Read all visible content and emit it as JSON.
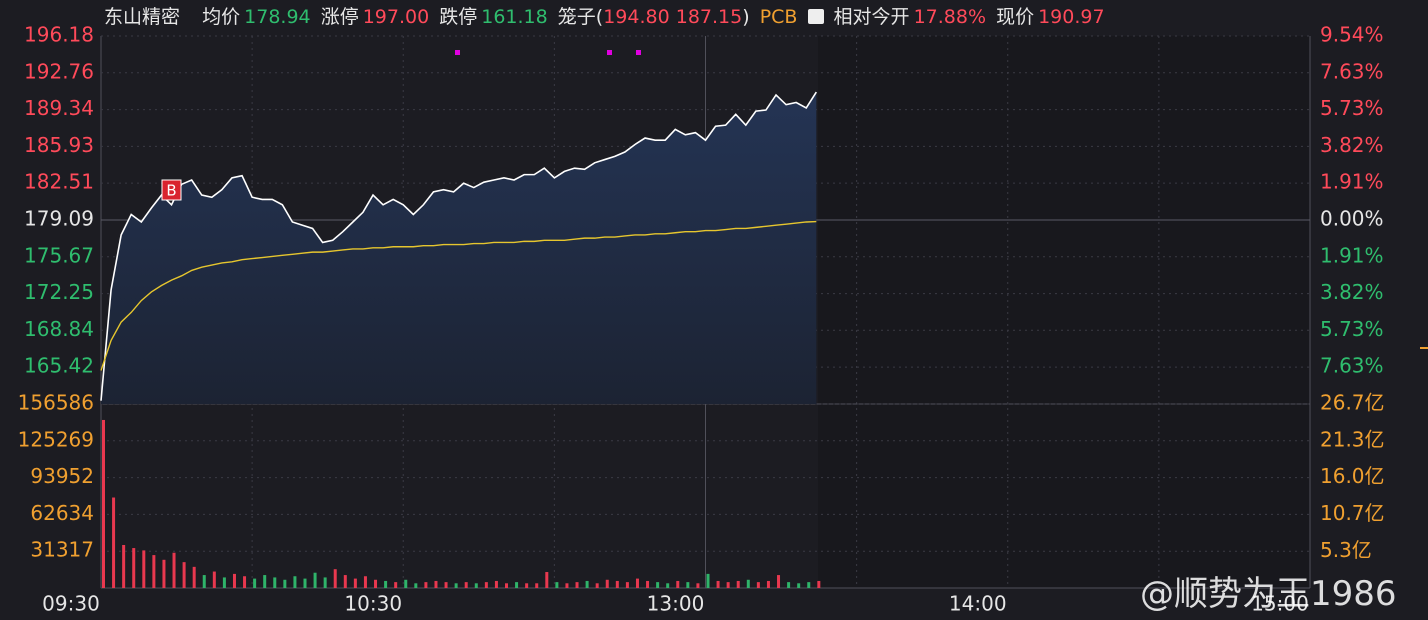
{
  "chart_data": [
    {
      "type": "line",
      "header": {
        "name": "东山精密",
        "avg_label": "均价",
        "avg_value": "178.94",
        "up_label": "涨停",
        "up_value": "197.00",
        "down_label": "跌停",
        "down_value": "161.18",
        "cage_label": "笼子(",
        "cage_values": "194.80 187.15",
        "cage_end": ")",
        "sector": "PCB",
        "open_label": "相对今开",
        "open_value": "17.88%",
        "price_label": "现价",
        "price_value": "190.97"
      },
      "annotations": [
        "B"
      ],
      "x": [
        0,
        2,
        4,
        6,
        8,
        10,
        12,
        14,
        16,
        18,
        20,
        22,
        24,
        26,
        28,
        30,
        32,
        34,
        36,
        38,
        40,
        42,
        44,
        46,
        48,
        50,
        52,
        54,
        56,
        58,
        60,
        62,
        64,
        66,
        68,
        70,
        72,
        74,
        76,
        78,
        80,
        82,
        84,
        86,
        88,
        90,
        92,
        94,
        96,
        98,
        100,
        102,
        104,
        106,
        108,
        110,
        112,
        114,
        116,
        118,
        120,
        122,
        124,
        126,
        128,
        130,
        132,
        134,
        136,
        138,
        140,
        142
      ],
      "xlim": [
        0,
        240
      ],
      "ylim": [
        161.99,
        196.18
      ],
      "yticks": [
        {
          "value": 196.18,
          "label": "196.18"
        },
        {
          "value": 192.76,
          "label": "192.76"
        },
        {
          "value": 189.34,
          "label": "189.34"
        },
        {
          "value": 185.93,
          "label": "185.93"
        },
        {
          "value": 182.51,
          "label": "182.51"
        },
        {
          "value": 179.09,
          "label": "179.09"
        },
        {
          "value": 175.67,
          "label": "175.67"
        },
        {
          "value": 172.25,
          "label": "172.25"
        },
        {
          "value": 168.84,
          "label": "168.84"
        },
        {
          "value": 165.42,
          "label": "165.42"
        }
      ],
      "y2lim": [
        -9.54,
        9.54
      ],
      "y2ticks": [
        {
          "value": 9.54,
          "label": "9.54%"
        },
        {
          "value": 7.63,
          "label": "7.63%"
        },
        {
          "value": 5.73,
          "label": "5.73%"
        },
        {
          "value": 3.82,
          "label": "3.82%"
        },
        {
          "value": 1.91,
          "label": "1.91%"
        },
        {
          "value": 0,
          "label": "0.00%"
        },
        {
          "value": -1.91,
          "label": "1.91%"
        },
        {
          "value": -3.82,
          "label": "3.82%"
        },
        {
          "value": -5.73,
          "label": "5.73%"
        },
        {
          "value": -7.63,
          "label": "7.63%"
        }
      ],
      "series": [
        {
          "color": "#ffffff",
          "values": [
            162.3,
            172.6,
            177.7,
            179.6,
            178.9,
            180.2,
            181.4,
            180.5,
            182.4,
            182.8,
            181.4,
            181.2,
            181.9,
            183.0,
            183.2,
            181.2,
            181.0,
            181.0,
            180.5,
            178.9,
            178.6,
            178.3,
            177.0,
            177.2,
            178.0,
            178.9,
            179.8,
            181.4,
            180.5,
            181.0,
            180.5,
            179.6,
            180.5,
            181.7,
            181.9,
            181.7,
            182.5,
            182.1,
            182.6,
            182.8,
            183.0,
            182.8,
            183.3,
            183.3,
            183.9,
            183.0,
            183.6,
            183.9,
            183.8,
            184.4,
            184.7,
            185.0,
            185.4,
            186.1,
            186.7,
            186.5,
            186.5,
            187.5,
            187.0,
            187.2,
            186.5,
            187.8,
            187.9,
            188.9,
            187.9,
            189.2,
            189.3,
            190.7,
            189.8,
            190.0,
            189.5,
            190.97
          ]
        },
        {
          "color": "#e6c62e",
          "values": [
            165.1,
            167.9,
            169.6,
            170.5,
            171.6,
            172.4,
            173.0,
            173.5,
            173.9,
            174.4,
            174.7,
            174.9,
            175.1,
            175.2,
            175.4,
            175.5,
            175.6,
            175.7,
            175.8,
            175.9,
            176.0,
            176.1,
            176.1,
            176.2,
            176.3,
            176.4,
            176.4,
            176.5,
            176.5,
            176.6,
            176.6,
            176.6,
            176.7,
            176.7,
            176.8,
            176.8,
            176.8,
            176.9,
            176.9,
            177.0,
            177.0,
            177.0,
            177.1,
            177.1,
            177.2,
            177.2,
            177.2,
            177.3,
            177.4,
            177.4,
            177.5,
            177.5,
            177.6,
            177.7,
            177.7,
            177.8,
            177.8,
            177.9,
            178.0,
            178.0,
            178.1,
            178.1,
            178.2,
            178.3,
            178.3,
            178.4,
            178.5,
            178.6,
            178.7,
            178.8,
            178.9,
            178.94
          ]
        }
      ]
    },
    {
      "type": "bar",
      "x": [
        0,
        2,
        4,
        6,
        8,
        10,
        12,
        14,
        16,
        18,
        20,
        22,
        24,
        26,
        28,
        30,
        32,
        34,
        36,
        38,
        40,
        42,
        44,
        46,
        48,
        50,
        52,
        54,
        56,
        58,
        60,
        62,
        64,
        66,
        68,
        70,
        72,
        74,
        76,
        78,
        80,
        82,
        84,
        86,
        88,
        90,
        92,
        94,
        96,
        98,
        100,
        102,
        104,
        106,
        108,
        110,
        112,
        114,
        116,
        118,
        120,
        122,
        124,
        126,
        128,
        130,
        132,
        134,
        136,
        138,
        140,
        142
      ],
      "xlim": [
        0,
        240
      ],
      "xticks": [
        {
          "value": 0,
          "label": "09:30"
        },
        {
          "value": 60,
          "label": "10:30"
        },
        {
          "value": 120,
          "label": "13:00"
        },
        {
          "value": 180,
          "label": "14:00"
        },
        {
          "value": 240,
          "label": "15:00"
        }
      ],
      "ylim": [
        0,
        156586
      ],
      "yticks": [
        156586,
        125269,
        93952,
        62634,
        31317
      ],
      "y2lim": [
        0,
        26.7
      ],
      "y2ticks": [
        {
          "value": 26.7,
          "label": "26.7亿"
        },
        {
          "value": 21.3,
          "label": "21.3亿"
        },
        {
          "value": 16.0,
          "label": "16.0亿"
        },
        {
          "value": 10.7,
          "label": "10.7亿"
        },
        {
          "value": 5.3,
          "label": "5.3亿"
        }
      ],
      "values": [
        143000,
        77000,
        36600,
        34000,
        32000,
        28000,
        24000,
        30000,
        22000,
        18000,
        11000,
        14000,
        9000,
        12000,
        10000,
        8000,
        11000,
        9000,
        7000,
        10000,
        8000,
        13000,
        9000,
        16000,
        11000,
        8000,
        10000,
        7000,
        6000,
        5000,
        7000,
        4000,
        5000,
        6000,
        5000,
        4000,
        5000,
        4000,
        5000,
        6000,
        4000,
        5000,
        4000,
        4000,
        13600,
        5000,
        4000,
        5000,
        6000,
        4000,
        7000,
        6000,
        5000,
        8000,
        6000,
        5000,
        4000,
        6000,
        5000,
        4000,
        12000,
        6000,
        5000,
        6000,
        7000,
        5000,
        6000,
        11000,
        5000,
        4000,
        5000,
        6000
      ],
      "colors": [
        "#e8384f",
        "#e8384f",
        "#e8384f",
        "#e8384f",
        "#e8384f",
        "#e8384f",
        "#e8384f",
        "#e8384f",
        "#e8384f",
        "#e8384f",
        "#2fb36a",
        "#e8384f",
        "#2fb36a",
        "#e8384f",
        "#e8384f",
        "#2fb36a",
        "#2fb36a",
        "#2fb36a",
        "#2fb36a",
        "#2fb36a",
        "#2fb36a",
        "#2fb36a",
        "#2fb36a",
        "#e8384f",
        "#e8384f",
        "#e8384f",
        "#e8384f",
        "#e8384f",
        "#2fb36a",
        "#e8384f",
        "#2fb36a",
        "#2fb36a",
        "#e8384f",
        "#e8384f",
        "#e8384f",
        "#2fb36a",
        "#e8384f",
        "#2fb36a",
        "#e8384f",
        "#e8384f",
        "#e8384f",
        "#2fb36a",
        "#e8384f",
        "#e8384f",
        "#e8384f",
        "#2fb36a",
        "#e8384f",
        "#e8384f",
        "#2fb36a",
        "#e8384f",
        "#e8384f",
        "#e8384f",
        "#e8384f",
        "#e8384f",
        "#e8384f",
        "#2fb36a",
        "#2fb36a",
        "#e8384f",
        "#2fb36a",
        "#e8384f",
        "#2fb36a",
        "#e8384f",
        "#e8384f",
        "#e8384f",
        "#2fb36a",
        "#e8384f",
        "#e8384f",
        "#e8384f",
        "#2fb36a",
        "#2fb36a",
        "#2fb36a",
        "#e8384f"
      ]
    }
  ],
  "watermark": "@顺势为王1986"
}
